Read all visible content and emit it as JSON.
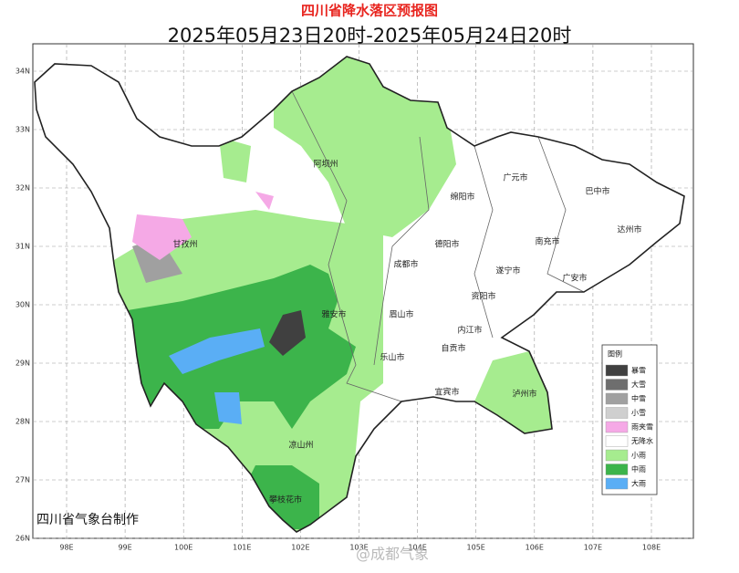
{
  "header": {
    "title": "四川省降水落区预报图",
    "subtitle": "2025年05月23日20时-2025年05月24日20时"
  },
  "map": {
    "lat_ticks": [
      {
        "value": 34,
        "label": "34N"
      },
      {
        "value": 33,
        "label": "33N"
      },
      {
        "value": 32,
        "label": "32N"
      },
      {
        "value": 31,
        "label": "31N"
      },
      {
        "value": 30,
        "label": "30N"
      },
      {
        "value": 29,
        "label": "29N"
      },
      {
        "value": 28,
        "label": "28N"
      },
      {
        "value": 27,
        "label": "27N"
      },
      {
        "value": 26,
        "label": "26N"
      }
    ],
    "lon_ticks": [
      {
        "value": 98,
        "label": "98E"
      },
      {
        "value": 99,
        "label": "99E"
      },
      {
        "value": 100,
        "label": "100E"
      },
      {
        "value": 101,
        "label": "101E"
      },
      {
        "value": 102,
        "label": "102E"
      },
      {
        "value": 103,
        "label": "103E"
      },
      {
        "value": 104,
        "label": "104E"
      },
      {
        "value": 105,
        "label": "105E"
      },
      {
        "value": 106,
        "label": "106E"
      },
      {
        "value": 107,
        "label": "107E"
      },
      {
        "value": 108,
        "label": "108E"
      }
    ],
    "places": [
      "阿坝州",
      "甘孜州",
      "雅安市",
      "凉山州",
      "攀枝花市",
      "乐山市",
      "眉山市",
      "成都市",
      "德阳市",
      "绵阳市",
      "广元市",
      "巴中市",
      "达州市",
      "南充市",
      "遂宁市",
      "资阳市",
      "广安市",
      "内江市",
      "自贡市",
      "宜宾市",
      "泸州市"
    ],
    "credit": "四川省气象台制作"
  },
  "legend": {
    "title": "图例",
    "items": [
      {
        "label": "暴雪",
        "color": "#404040"
      },
      {
        "label": "大雪",
        "color": "#6e6e6e"
      },
      {
        "label": "中雪",
        "color": "#a0a0a0"
      },
      {
        "label": "小雪",
        "color": "#cfcfcf"
      },
      {
        "label": "雨夹雪",
        "color": "#f5a9e6"
      },
      {
        "label": "无降水",
        "color": "#ffffff"
      },
      {
        "label": "小雨",
        "color": "#a6ec8f"
      },
      {
        "label": "中雨",
        "color": "#3cb44b"
      },
      {
        "label": "大雨",
        "color": "#5aaef5"
      }
    ]
  },
  "watermark": "@成都气象"
}
